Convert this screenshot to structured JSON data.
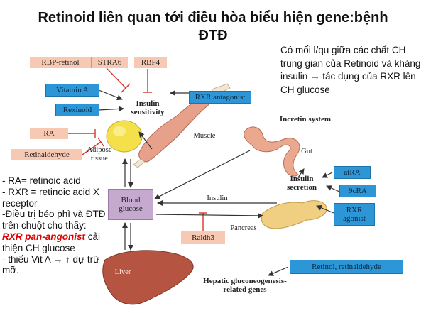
{
  "title": {
    "line1": "Retinoid liên quan tới điều hòa biểu hiện gene:bệnh",
    "line2": "ĐTĐ"
  },
  "note": "Có mối l/qu giữa các chất CH trung gian của Retinoid và kháng insulin → tác dụng của RXR lên CH glucose",
  "left_notes": {
    "line1": "- RA= retinoic acid",
    "line2": "- RXR = retinoic acid X receptor",
    "line3": "-Điều trị béo phì và ĐTĐ trên chuột cho thấy: ",
    "emph": "RXR pan-angonist",
    "line3b": " cải thiện CH glucose",
    "line4": "- thiếu Vit A → ↑ dự trữ mỡ."
  },
  "boxes": {
    "rbp_retinol": "RBP-retinol",
    "stra6": "STRA6",
    "rbp4": "RBP4",
    "vitamin_a": "Vitamin A",
    "rexinoid": "Rexinoid",
    "rxr_antagonist": "RXR antagonist",
    "ra": "RA",
    "retinaldehyde": "Retinaldehyde",
    "atra": "atRA",
    "cis9ra": "9cRA",
    "rxr_agonist": "RXR agonist",
    "raldh3": "Raldh3",
    "retinol_retinaldehyde": "Retinol, retinaldehyde",
    "blood_glucose": "Blood glucose"
  },
  "labels": {
    "insulin_sensitivity": "Insulin sensitivity",
    "muscle": "Muscle",
    "adipose_tissue": "Adipose tissue",
    "incretin_system": "Incretin system",
    "gut": "Gut",
    "insulin_secretion": "Insulin secretion",
    "insulin": "Insulin",
    "pancreas": "Pancreas",
    "liver": "Liver",
    "hepatic_genes": "Hepatic gluconeogenesis-related genes"
  },
  "colors": {
    "pink_box": "#f7c9b2",
    "blue_box": "#2d96d6",
    "purple_box": "#c6a9cf",
    "inhibit_red": "#d9332b",
    "emphasis_red": "#e00000"
  }
}
